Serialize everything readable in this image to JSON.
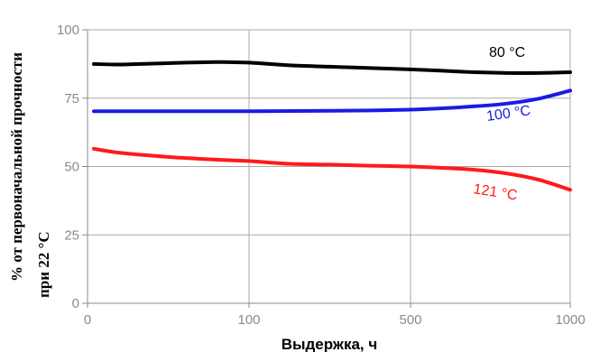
{
  "chart_data": {
    "type": "line",
    "xlabel": "Выдержка, ч",
    "ylabel_lines": [
      "% от первоначальной прочности",
      "при 22 °C"
    ],
    "x_ticks": [
      "0",
      "100",
      "500",
      "1000"
    ],
    "y_ticks": [
      "0",
      "25",
      "50",
      "75",
      "100"
    ],
    "ylim": [
      0,
      100
    ],
    "grid": true,
    "series": [
      {
        "name": "80 °C",
        "color": "#000000",
        "x": [
          0,
          20,
          50,
          80,
          100,
          200,
          300,
          400,
          500,
          600,
          700,
          800,
          900,
          1000
        ],
        "y": [
          87.5,
          87.3,
          87.8,
          88.2,
          88.0,
          87.0,
          86.5,
          86.0,
          85.5,
          85.0,
          84.5,
          84.2,
          84.2,
          84.5
        ]
      },
      {
        "name": "100 °C",
        "color": "#1a1ae6",
        "x": [
          0,
          20,
          50,
          80,
          100,
          200,
          300,
          400,
          500,
          600,
          700,
          800,
          900,
          1000
        ],
        "y": [
          70.2,
          70.2,
          70.2,
          70.2,
          70.2,
          70.3,
          70.4,
          70.5,
          70.8,
          71.3,
          72.0,
          73.0,
          74.8,
          77.8
        ]
      },
      {
        "name": "121 °C",
        "color": "#ff1a1a",
        "x": [
          0,
          20,
          50,
          80,
          100,
          200,
          300,
          400,
          500,
          600,
          700,
          800,
          900,
          1000
        ],
        "y": [
          56.5,
          55.0,
          53.5,
          52.5,
          52.0,
          51.0,
          50.7,
          50.3,
          50.0,
          49.5,
          48.8,
          47.5,
          45.2,
          41.5
        ]
      }
    ]
  }
}
